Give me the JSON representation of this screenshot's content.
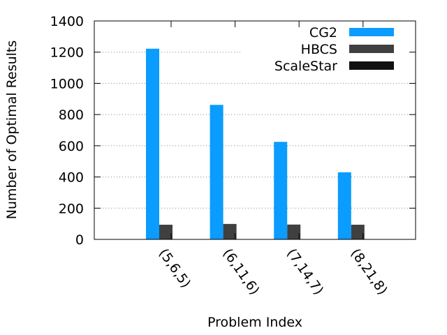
{
  "chart_data": {
    "type": "bar",
    "title": "",
    "xlabel": "Problem Index",
    "ylabel": "Number of Optimal Results",
    "ylim": [
      0,
      1400
    ],
    "yticks": [
      0,
      200,
      400,
      600,
      800,
      1000,
      1200,
      1400
    ],
    "categories": [
      "(5,6,5)",
      "(6,11,6)",
      "(7,14,7)",
      "(8,21,8)"
    ],
    "series": [
      {
        "name": "CG2",
        "values": [
          1222,
          862,
          625,
          430
        ],
        "color": "#0a9cff"
      },
      {
        "name": "HBCS",
        "values": [
          94,
          99,
          95,
          94
        ],
        "color": "#404040"
      },
      {
        "name": "ScaleStar",
        "values": [
          0,
          0,
          0,
          0
        ],
        "color": "#111111"
      }
    ],
    "grid": "horizontal-dotted",
    "legend_position": "top-right"
  }
}
